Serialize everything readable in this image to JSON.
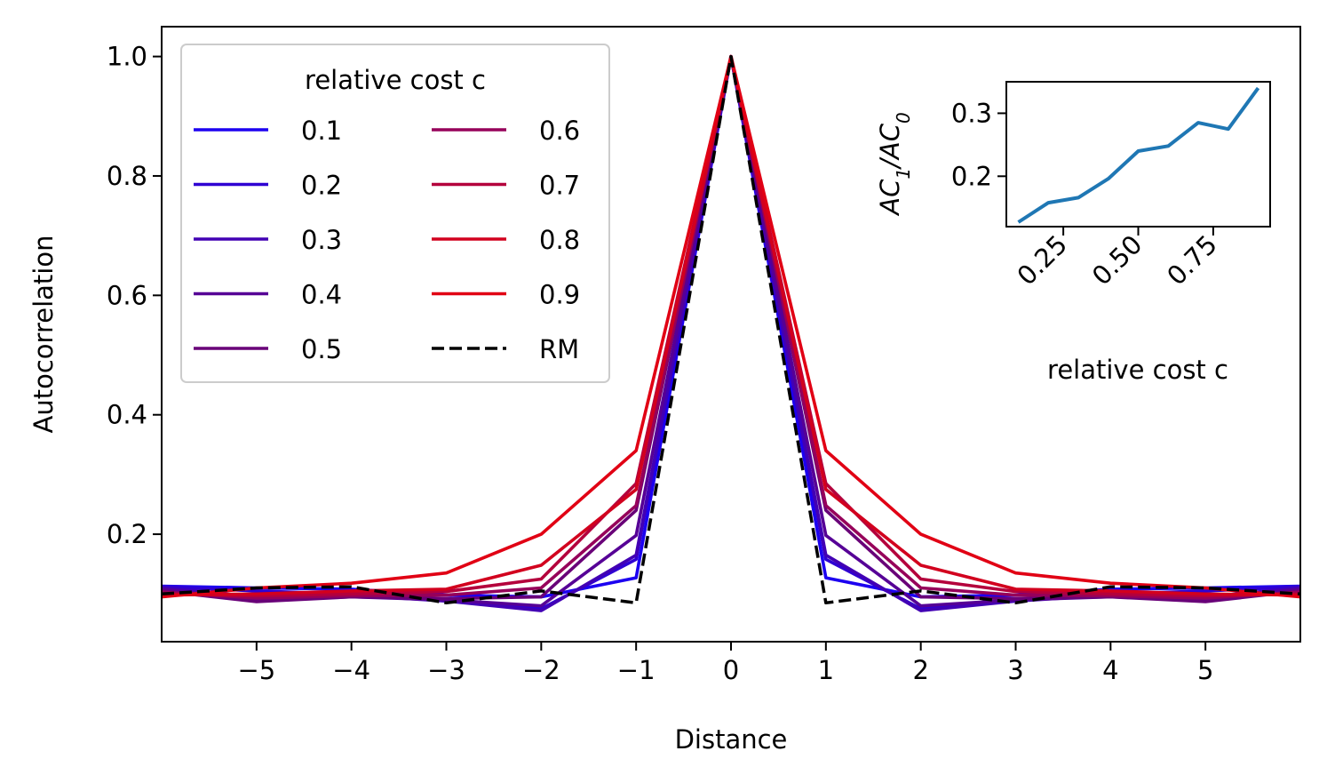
{
  "chart_data": [
    {
      "type": "line",
      "xlabel": "Distance",
      "ylabel": "Autocorrelation",
      "xlim": [
        -6,
        6
      ],
      "ylim": [
        0.02,
        1.05
      ],
      "xticks": [
        -5,
        -4,
        -3,
        -2,
        -1,
        0,
        1,
        2,
        3,
        4,
        5
      ],
      "xtick_labels": [
        "−5",
        "−4",
        "−3",
        "−2",
        "−1",
        "0",
        "1",
        "2",
        "3",
        "4",
        "5"
      ],
      "yticks": [
        0.2,
        0.4,
        0.6,
        0.8,
        1.0
      ],
      "ytick_labels": [
        "0.2",
        "0.4",
        "0.6",
        "0.8",
        "1.0"
      ],
      "grid": false,
      "legend": {
        "title": "relative cost c",
        "placement": "upper-left",
        "columns": 2
      },
      "x": [
        -6,
        -5,
        -4,
        -3,
        -2,
        -1,
        0,
        1,
        2,
        3,
        4,
        5,
        6
      ],
      "series": [
        {
          "name": "0.1",
          "color": "#1c00f0",
          "values": [
            0.113,
            0.11,
            0.108,
            0.098,
            0.095,
            0.127,
            1.0,
            0.127,
            0.095,
            0.098,
            0.108,
            0.11,
            0.113
          ]
        },
        {
          "name": "0.2",
          "color": "#2f00d2",
          "values": [
            0.112,
            0.105,
            0.1,
            0.09,
            0.075,
            0.158,
            1.0,
            0.158,
            0.075,
            0.09,
            0.1,
            0.105,
            0.112
          ]
        },
        {
          "name": "0.3",
          "color": "#4200b4",
          "values": [
            0.11,
            0.095,
            0.098,
            0.088,
            0.072,
            0.165,
            1.0,
            0.165,
            0.072,
            0.088,
            0.098,
            0.095,
            0.11
          ]
        },
        {
          "name": "0.4",
          "color": "#560096",
          "values": [
            0.108,
            0.09,
            0.095,
            0.09,
            0.08,
            0.198,
            1.0,
            0.198,
            0.08,
            0.09,
            0.095,
            0.09,
            0.108
          ]
        },
        {
          "name": "0.5",
          "color": "#690078",
          "values": [
            0.105,
            0.087,
            0.095,
            0.092,
            0.095,
            0.24,
            1.0,
            0.24,
            0.095,
            0.092,
            0.095,
            0.087,
            0.105
          ]
        },
        {
          "name": "0.6",
          "color": "#96005a",
          "values": [
            0.103,
            0.093,
            0.097,
            0.098,
            0.11,
            0.248,
            1.0,
            0.248,
            0.11,
            0.098,
            0.097,
            0.093,
            0.103
          ]
        },
        {
          "name": "0.7",
          "color": "#b4003c",
          "values": [
            0.1,
            0.097,
            0.1,
            0.104,
            0.125,
            0.285,
            1.0,
            0.285,
            0.125,
            0.104,
            0.1,
            0.097,
            0.1
          ]
        },
        {
          "name": "0.8",
          "color": "#d2001e",
          "values": [
            0.098,
            0.1,
            0.105,
            0.108,
            0.148,
            0.275,
            1.0,
            0.275,
            0.148,
            0.108,
            0.105,
            0.1,
            0.098
          ]
        },
        {
          "name": "0.9",
          "color": "#e10014",
          "values": [
            0.095,
            0.11,
            0.118,
            0.135,
            0.2,
            0.34,
            1.0,
            0.34,
            0.2,
            0.135,
            0.118,
            0.11,
            0.095
          ]
        },
        {
          "name": "RM",
          "color": "#000000",
          "dashed": true,
          "values": [
            0.1,
            0.11,
            0.112,
            0.085,
            0.105,
            0.085,
            1.0,
            0.085,
            0.105,
            0.085,
            0.112,
            0.11,
            0.1
          ]
        }
      ]
    },
    {
      "type": "line",
      "xlabel": "relative cost c",
      "ylabel": "AC1/AC0",
      "xlim": [
        0.06,
        0.94
      ],
      "ylim": [
        0.12,
        0.35
      ],
      "xticks": [
        0.25,
        0.5,
        0.75
      ],
      "xtick_labels": [
        "0.25",
        "0.50",
        "0.75"
      ],
      "yticks": [
        0.2,
        0.3
      ],
      "ytick_labels": [
        "0.2",
        "0.3"
      ],
      "grid": false,
      "x": [
        0.1,
        0.2,
        0.3,
        0.4,
        0.5,
        0.6,
        0.7,
        0.8,
        0.9
      ],
      "series": [
        {
          "color": "#1f77b4",
          "values": [
            0.127,
            0.158,
            0.166,
            0.196,
            0.24,
            0.248,
            0.285,
            0.275,
            0.34
          ]
        }
      ]
    }
  ]
}
